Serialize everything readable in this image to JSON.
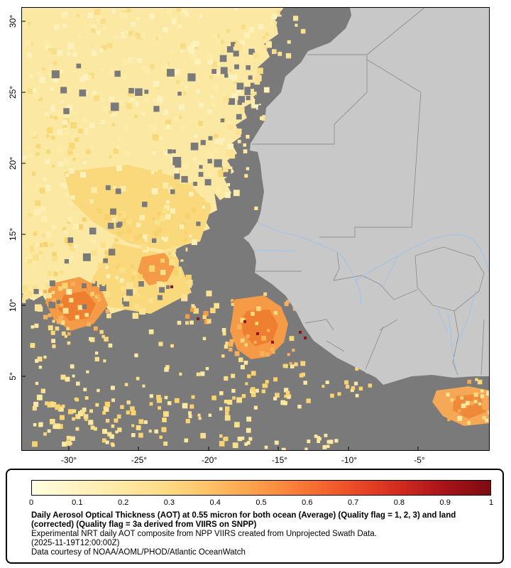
{
  "map": {
    "y_ticks": [
      "30°",
      "25°",
      "20°",
      "15°",
      "10°",
      "5°"
    ],
    "x_ticks": [
      "-30°",
      "-25°",
      "-20°",
      "-15°",
      "-10°",
      "-5°"
    ],
    "colors": {
      "no_data_ocean": "#7a7a7a",
      "land": "#c8c8c8",
      "country_border": "#8f8f8f",
      "river": "#9fc5e8",
      "frame": "#000000",
      "aot_low": "#fbe9a3",
      "aot_mid": "#f9d97c",
      "aot_high": "#f59b47",
      "aot_very_high": "#ee7e30",
      "aot_extreme": "#8f1414"
    }
  },
  "legend": {
    "ticks": [
      "0",
      "0.1",
      "0.2",
      "0.3",
      "0.4",
      "0.5",
      "0.6",
      "0.7",
      "0.8",
      "0.9",
      "1"
    ],
    "colorbar_stops": [
      "#fffee0",
      "#fff3c2",
      "#fee9a2",
      "#fdd982",
      "#fdbd62",
      "#fc9a48",
      "#f87434",
      "#ec4c26",
      "#d22b20",
      "#a81318",
      "#7d0c12"
    ],
    "caption_bold": "Daily Aerosol Optical Thickness (AOT) at 0.55 micron for both ocean (Average) (Quality flag = 1, 2, 3) and land (corrected) (Quality flag = 3a derived from VIIRS on SNPP)",
    "caption_line2": "Experimental NRT daily AOT composite from NPP VIIRS created from Unprojected Swath Data.",
    "caption_line3": "(2025-11-19T12:00:00Z)",
    "caption_line4": "Data courtesy of NOAA/AOML/PHOD/Atlantic OceanWatch"
  }
}
